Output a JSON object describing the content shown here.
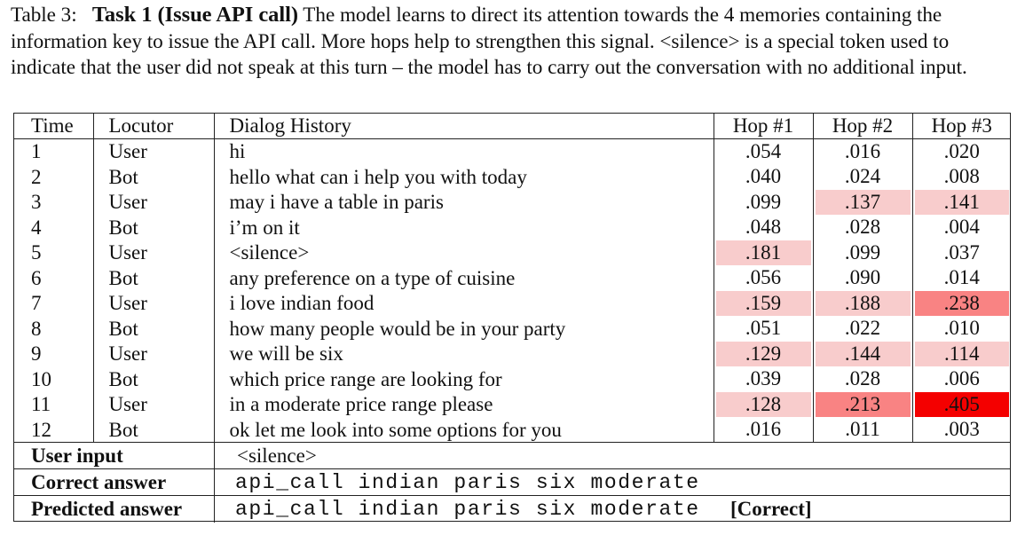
{
  "caption": {
    "label": "Table 3:",
    "title": "Task 1 (Issue API call)",
    "text": " The model learns to direct its attention towards the 4 memories containing the information key to issue the API call. More hops help to strengthen this signal. <silence> is a special token used to indicate that the user did not speak at this turn – the model has to carry out the conversation with no additional input."
  },
  "table": {
    "headers": [
      "Time",
      "Locutor",
      "Dialog History",
      "Hop #1",
      "Hop #2",
      "Hop #3"
    ],
    "rows": [
      {
        "time": "1",
        "locutor": "User",
        "dialog": "hi",
        "hops": [
          ".054",
          ".016",
          ".020"
        ]
      },
      {
        "time": "2",
        "locutor": "Bot",
        "dialog": "hello what can i help you with today",
        "hops": [
          ".040",
          ".024",
          ".008"
        ]
      },
      {
        "time": "3",
        "locutor": "User",
        "dialog": "may i have a table in paris",
        "hops": [
          ".099",
          ".137",
          ".141"
        ]
      },
      {
        "time": "4",
        "locutor": "Bot",
        "dialog": "i’m on it",
        "hops": [
          ".048",
          ".028",
          ".004"
        ]
      },
      {
        "time": "5",
        "locutor": "User",
        "dialog": "<silence>",
        "hops": [
          ".181",
          ".099",
          ".037"
        ]
      },
      {
        "time": "6",
        "locutor": "Bot",
        "dialog": "any preference on a type of cuisine",
        "hops": [
          ".056",
          ".090",
          ".014"
        ]
      },
      {
        "time": "7",
        "locutor": "User",
        "dialog": "i love indian food",
        "hops": [
          ".159",
          ".188",
          ".238"
        ]
      },
      {
        "time": "8",
        "locutor": "Bot",
        "dialog": "how many people would be in your party",
        "hops": [
          ".051",
          ".022",
          ".010"
        ]
      },
      {
        "time": "9",
        "locutor": "User",
        "dialog": "we will be six",
        "hops": [
          ".129",
          ".144",
          ".114"
        ]
      },
      {
        "time": "10",
        "locutor": "Bot",
        "dialog": "which price range are looking for",
        "hops": [
          ".039",
          ".028",
          ".006"
        ]
      },
      {
        "time": "11",
        "locutor": "User",
        "dialog": "in a moderate price range please",
        "hops": [
          ".128",
          ".213",
          ".405"
        ]
      },
      {
        "time": "12",
        "locutor": "Bot",
        "dialog": "ok let me look into some options for you",
        "hops": [
          ".016",
          ".011",
          ".003"
        ]
      }
    ],
    "highlight_colors": {
      "light": "#f8cccc",
      "medium": "#f98383",
      "strong": "#f40000"
    }
  },
  "footer": {
    "user_input_label": "User input",
    "user_input_value": "<silence>",
    "correct_label": "Correct answer",
    "correct_value": "api_call indian paris six moderate",
    "predicted_label": "Predicted answer",
    "predicted_value": "api_call indian paris six moderate",
    "predicted_tag": "[Correct]"
  }
}
